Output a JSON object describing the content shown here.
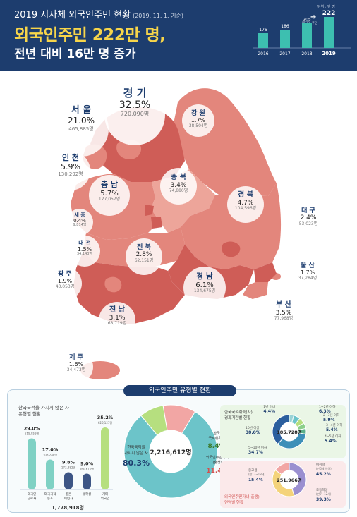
{
  "header": {
    "title": "2019 지자체 외국인주민 현황",
    "date": "(2019. 11. 1. 기준)",
    "headline1": "외국인주민 222만 명,",
    "headline2": "전년 대비 16만 명 증가",
    "trend_unit": "단위 : 만 명",
    "trend_note": "외국인 주민"
  },
  "regions": [
    {
      "name": "경 기",
      "pct": "32.5%",
      "count": "720,090명"
    },
    {
      "name": "서 울",
      "pct": "21.0%",
      "count": "465,885명"
    },
    {
      "name": "인 천",
      "pct": "5.9%",
      "count": "130,292명"
    },
    {
      "name": "강 원",
      "pct": "1.7%",
      "count": "38,504명"
    },
    {
      "name": "충 북",
      "pct": "3.4%",
      "count": "74,880명"
    },
    {
      "name": "충 남",
      "pct": "5.7%",
      "count": "127,057명"
    },
    {
      "name": "세 종",
      "pct": "0.4%",
      "count": "9,814명"
    },
    {
      "name": "대 전",
      "pct": "1.5%",
      "count": "34,143명"
    },
    {
      "name": "경 북",
      "pct": "4.7%",
      "count": "104,596명"
    },
    {
      "name": "대 구",
      "pct": "2.4%",
      "count": "53,023명"
    },
    {
      "name": "전 북",
      "pct": "2.8%",
      "count": "62,151명"
    },
    {
      "name": "광 주",
      "pct": "1.9%",
      "count": "43,053명"
    },
    {
      "name": "경 남",
      "pct": "6.1%",
      "count": "134,675명"
    },
    {
      "name": "울 산",
      "pct": "1.7%",
      "count": "37,284명"
    },
    {
      "name": "부 산",
      "pct": "3.5%",
      "count": "77,968명"
    },
    {
      "name": "전 남",
      "pct": "3.1%",
      "count": "68,719명"
    },
    {
      "name": "제 주",
      "pct": "1.6%",
      "count": "34,473명"
    }
  ],
  "bottom": {
    "title": "외국인주민 유형별 현황",
    "left_title_1": "한국국적을 가지지 않은 자",
    "left_title_2": "유형별 현황",
    "left_total": "1,778,918명",
    "bars": [
      {
        "label_1": "외국인",
        "label_2": "근로자",
        "pct": "29.0%",
        "count": "515,051명"
      },
      {
        "label_1": "외국국적",
        "label_2": "동포",
        "pct": "17.0%",
        "count": "303,248명"
      },
      {
        "label_1": "결혼",
        "label_2": "이민자",
        "pct": "9.8%",
        "count": "173,882명"
      },
      {
        "label_1": "유학생",
        "label_2": "",
        "pct": "9.0%",
        "count": "160,610명"
      },
      {
        "label_1": "기타",
        "label_2": "외국인",
        "pct": "35.2%",
        "count": "626,127명"
      }
    ],
    "total": "2,216,612명",
    "main_label_1": "한국국적을",
    "main_label_2": "가지지 않은 자",
    "main_pct": "80.3%",
    "nat_label_1": "한국",
    "nat_label_2": "국적취득자",
    "nat_pct": "8.4%",
    "child_label_1": "외국인주민자녀",
    "child_label_2": "(출생)",
    "child_pct": "11.4%",
    "nat_title_1": "한국국적취득(자)",
    "nat_title_2": "경과기간별 현황",
    "nat_total": "185,728명",
    "nat_segments": [
      {
        "label": "1년 이내",
        "pct": "4.4%"
      },
      {
        "label": "1~2년 이하",
        "pct": "6.3%"
      },
      {
        "label": "2~3년 이하",
        "pct": "5.9%"
      },
      {
        "label": "3~4년 이하",
        "pct": "5.4%"
      },
      {
        "label": "4~5년 이하",
        "pct": "5.4%"
      },
      {
        "label": "5~10년 이하",
        "pct": "34.7%"
      },
      {
        "label": "10년 이상",
        "pct": "38.0%"
      }
    ],
    "child_title_1": "외국인주민자녀(출생)",
    "child_title_2": "연령별 현황",
    "child_total": "251,966명",
    "child_segments": [
      {
        "label_1": "미취학",
        "label_2": "(만6세 이하)",
        "pct": "45.2%"
      },
      {
        "label_1": "초등학생",
        "label_2": "(만7~12세)",
        "pct": "39.3%"
      },
      {
        "label_1": "중고생",
        "label_2": "(만13~18세)",
        "pct": "15.4%"
      }
    ]
  },
  "chart_data": [
    {
      "type": "bar",
      "categories": [
        "2016",
        "2017",
        "2018",
        "2019"
      ],
      "values": [
        176,
        186,
        205,
        222
      ],
      "ylabel": "단위 : 만 명"
    },
    {
      "type": "bar",
      "categories": [
        "외국인 근로자",
        "외국국적 동포",
        "결혼 이민자",
        "유학생",
        "기타 외국인"
      ],
      "values": [
        29.0,
        17.0,
        9.8,
        9.0,
        35.2
      ]
    },
    {
      "type": "pie",
      "categories": [
        "한국국적을 가지지 않은 자",
        "한국 국적취득자",
        "외국인주민자녀(출생)"
      ],
      "values": [
        80.3,
        8.4,
        11.4
      ]
    },
    {
      "type": "pie",
      "categories": [
        "1년 이내",
        "1~2년 이하",
        "2~3년 이하",
        "3~4년 이하",
        "4~5년 이하",
        "5~10년 이하",
        "10년 이상"
      ],
      "values": [
        4.4,
        6.3,
        5.9,
        5.4,
        5.4,
        34.7,
        38.0
      ]
    },
    {
      "type": "pie",
      "categories": [
        "미취학(만6세 이하)",
        "초등학생(만7~12세)",
        "중고생(만13~18세)"
      ],
      "values": [
        45.2,
        39.3,
        15.4
      ]
    }
  ],
  "colors": {
    "navy": "#1d3d6e",
    "headline_yellow": "#f7d54a",
    "trend_bar": "#3dbfb0",
    "map_dark": "#cf5d57",
    "map_mid": "#e3867c",
    "map_light": "#eda59a",
    "bar_teal": "#7fd1c4",
    "bar_navy": "#3d5585",
    "bar_green": "#b6df7f",
    "ring_teal": "#6cc4c9",
    "ring_green": "#b6df7f",
    "ring_pink": "#f2a6a4"
  }
}
